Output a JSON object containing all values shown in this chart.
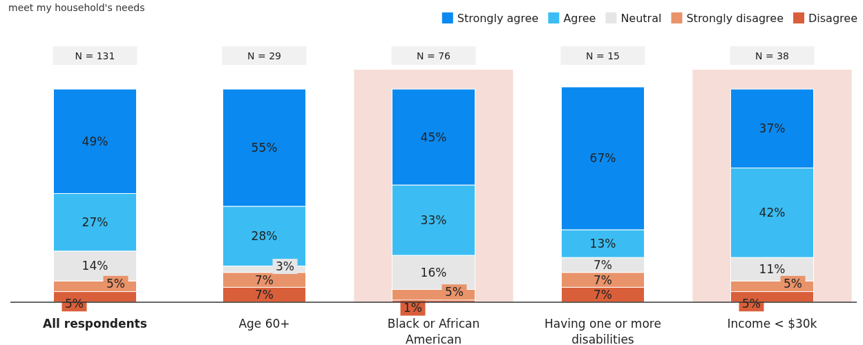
{
  "chart_data": {
    "type": "bar",
    "title": "meet my household's needs",
    "stacked": true,
    "legend": "top right",
    "categories": [
      "All respondents",
      "Age 60+",
      "Black or African American",
      "Having one or more disabilities",
      "Income < $30k"
    ],
    "series": [
      {
        "name": "Disagree",
        "color": "#d95f3a",
        "values": [
          5,
          7,
          1,
          7,
          5
        ],
        "value_labels": [
          "5%",
          "7%",
          "1%",
          "7%",
          "5%"
        ]
      },
      {
        "name": "Strongly disagree",
        "color": "#e9936a",
        "values": [
          5,
          7,
          5,
          7,
          5
        ],
        "value_labels": [
          "5%",
          "7%",
          "5%",
          "7%",
          "5%"
        ]
      },
      {
        "name": "Neutral",
        "color": "#e6e6e6",
        "values": [
          14,
          3,
          16,
          7,
          11
        ],
        "value_labels": [
          "14%",
          "3%",
          "16%",
          "7%",
          "11%"
        ]
      },
      {
        "name": "Agree",
        "color": "#3bbdf3",
        "values": [
          27,
          28,
          33,
          13,
          42
        ],
        "value_labels": [
          "27%",
          "28%",
          "33%",
          "13%",
          "42%"
        ]
      },
      {
        "name": "Strongly agree",
        "color": "#0a8af0",
        "values": [
          49,
          55,
          45,
          67,
          37
        ],
        "value_labels": [
          "49%",
          "55%",
          "45%",
          "67%",
          "37%"
        ]
      }
    ],
    "bands": [
      {
        "axis": "x",
        "from": "Black or African American",
        "to": "Black or African American",
        "color": "#f7ddd7"
      },
      {
        "axis": "x",
        "from": "Income < $30k",
        "to": "Income < $30k",
        "color": "#f7ddd7"
      }
    ],
    "annotations": [
      "N = 131",
      "N = 29",
      "N = 76",
      "N = 15",
      "N = 38"
    ]
  }
}
